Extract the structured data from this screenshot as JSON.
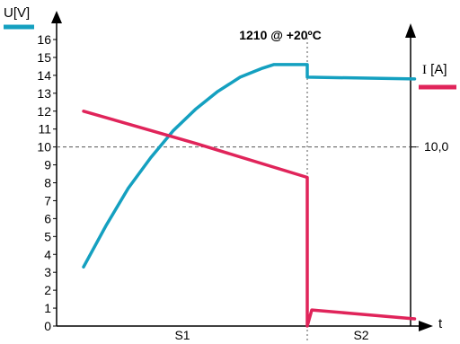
{
  "chart_data": {
    "type": "line",
    "title": "1210 @ +20ºC",
    "left_axis": {
      "label": "U[V]",
      "ticks": [
        0,
        1,
        2,
        3,
        4,
        5,
        6,
        7,
        8,
        9,
        10,
        11,
        12,
        13,
        14,
        15,
        16
      ],
      "ylim": [
        0,
        16
      ],
      "color": "#14a0c0"
    },
    "right_axis": {
      "label_prefix": "I",
      "label_suffix": " [A]",
      "marked_value_label": "10,0",
      "color": "#e0245a"
    },
    "x_axis": {
      "label": "t",
      "phases": [
        "S1",
        "S2"
      ]
    },
    "series": [
      {
        "name": "U[V]",
        "color": "#14a0c0",
        "points": [
          [
            0.0,
            3.3
          ],
          [
            0.1,
            5.6
          ],
          [
            0.2,
            7.7
          ],
          [
            0.3,
            9.4
          ],
          [
            0.4,
            10.9
          ],
          [
            0.5,
            12.1
          ],
          [
            0.6,
            13.1
          ],
          [
            0.7,
            13.9
          ],
          [
            0.8,
            14.4
          ],
          [
            0.85,
            14.6
          ],
          [
            1.0,
            14.6
          ],
          [
            1.0,
            13.9
          ],
          [
            1.48,
            13.8
          ]
        ]
      },
      {
        "name": "I [A]",
        "color": "#e0245a",
        "points": [
          [
            0.0,
            12.0
          ],
          [
            0.5,
            10.2
          ],
          [
            1.0,
            8.3
          ],
          [
            1.0,
            0.0
          ],
          [
            1.02,
            0.9
          ],
          [
            1.2,
            0.7
          ],
          [
            1.48,
            0.4
          ]
        ]
      }
    ],
    "reference_line": {
      "y": 10,
      "style": "dashed"
    },
    "phase_boundary": {
      "x": 1.0,
      "style": "dotted"
    },
    "grid": false,
    "legend": "none"
  }
}
